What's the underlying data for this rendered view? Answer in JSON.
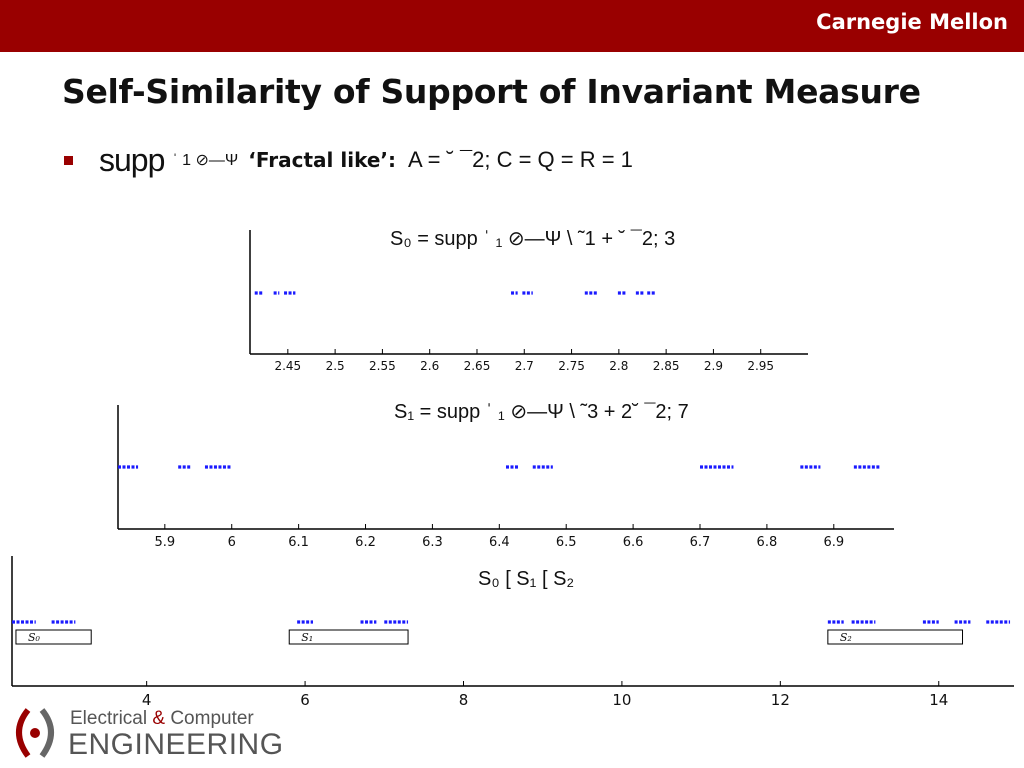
{
  "header": {
    "brand": "Carnegie Mellon"
  },
  "title": "Self-Similarity of Support of Invariant Measure",
  "bullet": {
    "supp": "supp",
    "glyph": "ˈ 1 ⊘—Ψ",
    "label": "‘Fractal like’:",
    "rest": "A =  ˘ ¯2; C = Q = R = 1"
  },
  "logo": {
    "line1_a": "Electrical ",
    "amp": "&",
    "line1_b": " Computer",
    "line2": "ENGINEERING"
  },
  "colors": {
    "topbar": "#990000",
    "series": "#1a1aff",
    "axis": "#000000"
  },
  "chart_data": [
    {
      "type": "scatter",
      "title": "S₀ = supp ˈ ₁ ⊘—Ψ \\ ˜1 + ˘ ¯2; 3",
      "xlim": [
        2.41,
        3.0
      ],
      "xticks": [
        2.45,
        2.5,
        2.55,
        2.6,
        2.65,
        2.7,
        2.75,
        2.8,
        2.85,
        2.9,
        2.95
      ],
      "xtick_labels": [
        "2.45",
        "2.5",
        "2.55",
        "2.6",
        "2.65",
        "2.7",
        "2.75",
        "2.8",
        "2.85",
        "2.9",
        "2.95"
      ],
      "y": 1,
      "clusters": [
        [
          2.415,
          2.423
        ],
        [
          2.435,
          2.441
        ],
        [
          2.446,
          2.458
        ],
        [
          2.686,
          2.693
        ],
        [
          2.698,
          2.709
        ],
        [
          2.764,
          2.778
        ],
        [
          2.799,
          2.807
        ],
        [
          2.818,
          2.826
        ],
        [
          2.83,
          2.838
        ]
      ]
    },
    {
      "type": "scatter",
      "title": "S₁ = supp ˈ ₁ ⊘—Ψ \\ ˜3 + 2˘ ¯2; 7",
      "xlim": [
        5.83,
        6.99
      ],
      "xticks": [
        5.9,
        6.0,
        6.1,
        6.2,
        6.3,
        6.4,
        6.5,
        6.6,
        6.7,
        6.8,
        6.9
      ],
      "xtick_labels": [
        "5.9",
        "6",
        "6.1",
        "6.2",
        "6.3",
        "6.4",
        "6.5",
        "6.6",
        "6.7",
        "6.8",
        "6.9"
      ],
      "y": 1,
      "clusters": [
        [
          5.83,
          5.86
        ],
        [
          5.92,
          5.94
        ],
        [
          5.96,
          6.0
        ],
        [
          6.41,
          6.43
        ],
        [
          6.45,
          6.48
        ],
        [
          6.7,
          6.75
        ],
        [
          6.85,
          6.88
        ],
        [
          6.93,
          6.97
        ]
      ]
    },
    {
      "type": "scatter",
      "title": "S₀ [ S₁ [ S₂",
      "xlim": [
        2.3,
        14.95
      ],
      "xticks": [
        4,
        6,
        8,
        10,
        12,
        14
      ],
      "xtick_labels": [
        "4",
        "6",
        "8",
        "10",
        "12",
        "14"
      ],
      "y": 1,
      "clusters": [
        [
          2.3,
          2.6
        ],
        [
          2.8,
          3.1
        ],
        [
          5.9,
          6.1
        ],
        [
          6.7,
          6.9
        ],
        [
          7.0,
          7.3
        ],
        [
          12.6,
          12.8
        ],
        [
          12.9,
          13.2
        ],
        [
          13.8,
          14.0
        ],
        [
          14.2,
          14.4
        ],
        [
          14.6,
          14.9
        ]
      ],
      "boxes": [
        {
          "label": "S₀",
          "x": [
            2.35,
            3.3
          ]
        },
        {
          "label": "S₁",
          "x": [
            5.8,
            7.3
          ]
        },
        {
          "label": "S₂",
          "x": [
            12.6,
            14.3
          ]
        }
      ]
    }
  ]
}
